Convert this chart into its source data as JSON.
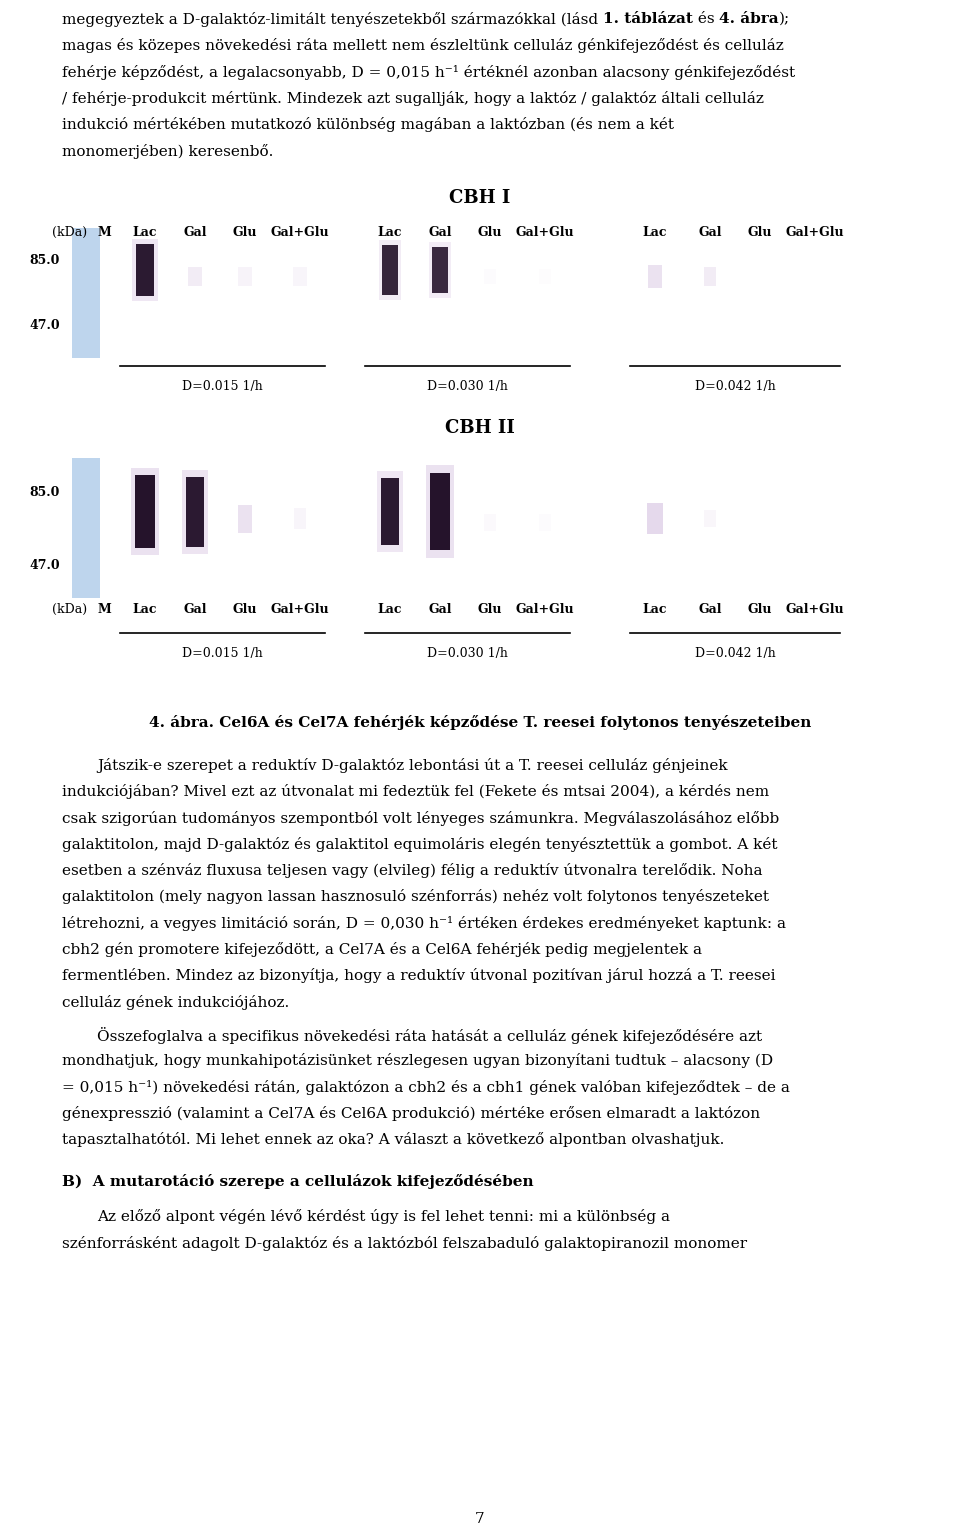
{
  "background_color": "#ffffff",
  "page_width": 9.6,
  "page_height": 15.37,
  "dpi": 100,
  "text_color": "#000000",
  "body_fontsize": 11.0,
  "label_fontsize": 9.0,
  "cbh_fontsize": 13.0,
  "para1_line1_normal": "megegyeztek a D-galaktóz-limitált tenyészetekből származókkal (lásd ",
  "para1_line1_bold1": "1. táblázat",
  "para1_line1_mid": " és ",
  "para1_line1_bold2": "4. ábra",
  "para1_line1_end": ");",
  "para1_lines": [
    "magas és közepes növekedési ráta mellett nem észleltünk celluláz génkifejeződést és celluláz",
    "fehérje képződést, a legalacsonyabb, D = 0,015 h⁻¹ értéknél azonban alacsony génkifejeződést",
    "/ fehérje-produkcit mértünk. Mindezek azt sugallják, hogy a laktóz / galaktóz általi celluláz",
    "indukció mértékében mutatkozó különbség magában a laktózban (és nem a két",
    "monomerjében) keresenbő."
  ],
  "cbh1_label": "CBH I",
  "cbh2_label": "CBH II",
  "kda_85": "85.0",
  "kda_47": "47.0",
  "kda_label": "(kDa)",
  "m_label": "M",
  "lane_labels": [
    "Lac",
    "Gal",
    "Glu",
    "Gal+Glu"
  ],
  "d_labels": [
    "D=0.015 1/h",
    "D=0.030 1/h",
    "D=0.042 1/h"
  ],
  "fig_caption": "4. ábra. Cel6A és Cel7A fehérjék képződése T. reesei folytonos tenyészeteiben",
  "para2_indent": "Játszik-e szerepet a reduktív D-galaktóz lebontási út a T. reesei celluláz génjeinek",
  "para2_lines": [
    "indukciójában? Mivel ezt az útvonalat mi fedeztük fel (Fekete és mtsai 2004), a kérdés nem",
    "csak szigorúan tudományos szempontból volt lényeges számunkra. Megválaszolásához előbb",
    "galaktitolon, majd D-galaktóz és galaktitol equimoláris elegén tenyésztettük a gombot. A két",
    "esetben a szénváz fluxusa teljesen vagy (elvileg) félig a reduktív útvonalra terelődik. Noha",
    "galaktitolon (mely nagyon lassan hasznosuló szénforrás) nehéz volt folytonos tenyészeteket",
    "létrehozni, a vegyes limitáció során, D = 0,030 h⁻¹ értéken érdekes eredményeket kaptunk: a",
    "cbh2 gén promotere kifejeződött, a Cel7A és a Cel6A fehérjék pedig megjelentek a",
    "fermentlében. Mindez az bizonyítja, hogy a reduktív útvonal pozitívan járul hozzá a T. reesei",
    "celluláz gének indukciójához."
  ],
  "para3_indent": "Összefoglalva a specifikus növekedési ráta hatását a celluláz gének kifejeződésére azt",
  "para3_lines": [
    "mondhatjuk, hogy munkahipotázisünket részlegesen ugyan bizonyítani tudtuk – alacsony (D",
    "= 0,015 h⁻¹) növekedési rátán, galaktózon a cbh2 és a cbh1 gének valóban kifejeződtek – de a",
    "génexpresszió (valamint a Cel7A és Cel6A produkció) mértéke erősen elmaradt a laktózon",
    "tapasztalhatótól. Mi lehet ennek az oka? A választ a következő alpontban olvashatjuk."
  ],
  "section_bold": "B)  A mutarotáció szerepe a cellulázok kifejeződésében",
  "para4_indent": "Az előző alpont végén lévő kérdést úgy is fel lehet tenni: mi a különbség a",
  "para4_line2": "szénforrásként adagolt D-galaktóz és a laktózból felszabaduló galaktopiranozil monomer",
  "page_number": "7",
  "marker_color": "#a8c8e8",
  "band_dark": "#1a0820",
  "band_mid": "#3a1050",
  "band_light": "#c0a0d0",
  "band_faint": "#e0d0e8"
}
